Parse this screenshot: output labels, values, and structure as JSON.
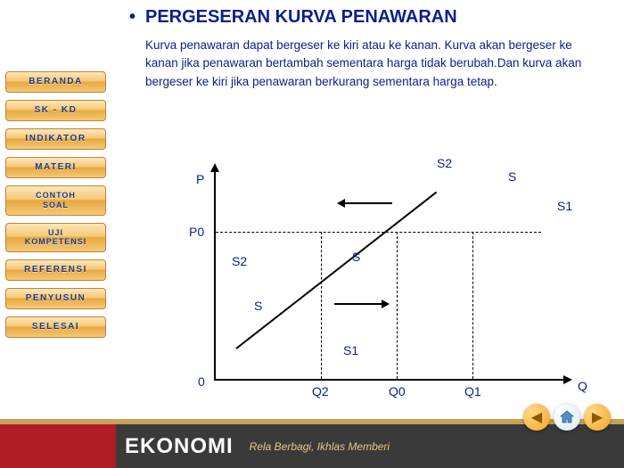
{
  "sidebar": {
    "items": [
      {
        "label": "BERANDA"
      },
      {
        "label": "SK - KD"
      },
      {
        "label": "INDIKATOR"
      },
      {
        "label": "MATERI"
      },
      {
        "label": "CONTOH\nSOAL"
      },
      {
        "label": "UJI\nKOMPETENSI"
      },
      {
        "label": "REFERENSI"
      },
      {
        "label": "PENYUSUN"
      },
      {
        "label": "SELESAI"
      }
    ]
  },
  "heading": "PERGESERAN KURVA PENAWARAN",
  "description": "Kurva penawaran dapat bergeser ke kiri    atau ke kanan. Kurva akan bergeser ke kanan jika penawaran bertambah sementara harga tidak berubah.Dan kurva akan bergeser ke kiri jika penawaran berkurang sementara harga tetap.",
  "chart": {
    "type": "line-economics",
    "y_axis_label": "P",
    "x_axis_label": "Q",
    "origin_label": "0",
    "price_level_label": "P0",
    "x_ticks": [
      "Q2",
      "Q0",
      "Q1"
    ],
    "curve_labels_top": [
      "S2",
      "S"
    ],
    "curve_labels_mid": [
      "S2",
      "S",
      "S1"
    ],
    "curve_labels_bottom": [
      "S",
      "S1"
    ],
    "colors": {
      "axis": "#000000",
      "text": "#0a1f8a",
      "dashed": "#000000"
    },
    "p0_y": 85,
    "x_positions": {
      "Q2": 180,
      "Q0": 265,
      "Q1": 350
    },
    "supply_line": {
      "x": 85,
      "y": 215,
      "length": 285,
      "angle_deg": -38
    }
  },
  "footer": {
    "title": "EKONOMI",
    "subtitle": "Rela Berbagi, Ikhlas Memberi"
  },
  "nav_icons": {
    "prev": "◀",
    "home": "⌂",
    "next": "▶"
  }
}
